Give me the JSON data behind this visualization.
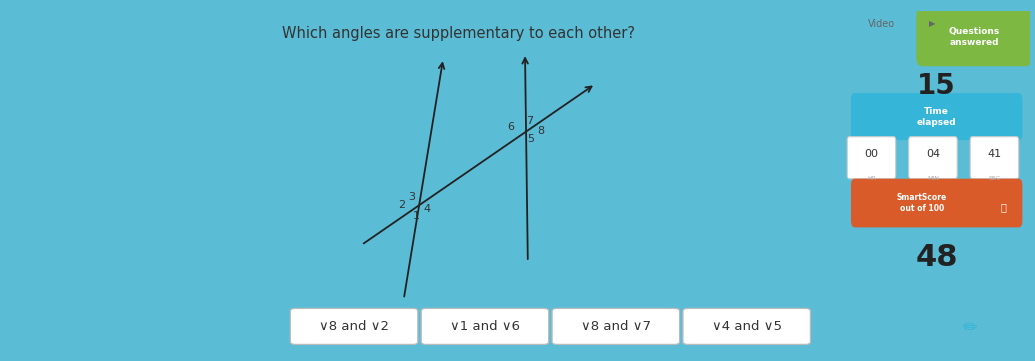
{
  "bg_outer": "#5bbcd6",
  "bg_panel": "#ececec",
  "question_text": "Which angles are supplementary to each other?",
  "answer_choices": [
    "∨8 and ∨2",
    "∨1 and ∨6",
    "∨8 and ∨7",
    "∨4 and ∨5"
  ],
  "questions_answered_label": "Questions\nanswered",
  "questions_answered_value": "15",
  "time_elapsed_label": "Time\nelapsed",
  "time_hr": "00",
  "time_min": "04",
  "time_sec": "41",
  "smartscore_label": "SmartScore\nout of 100",
  "smartscore_value": "48",
  "video_label": "Video",
  "green_color": "#7db843",
  "blue_color": "#35b5d8",
  "orange_color": "#d95b2a",
  "dark_strip": "#1a1a1a",
  "panel_white": "#f5f5f5"
}
